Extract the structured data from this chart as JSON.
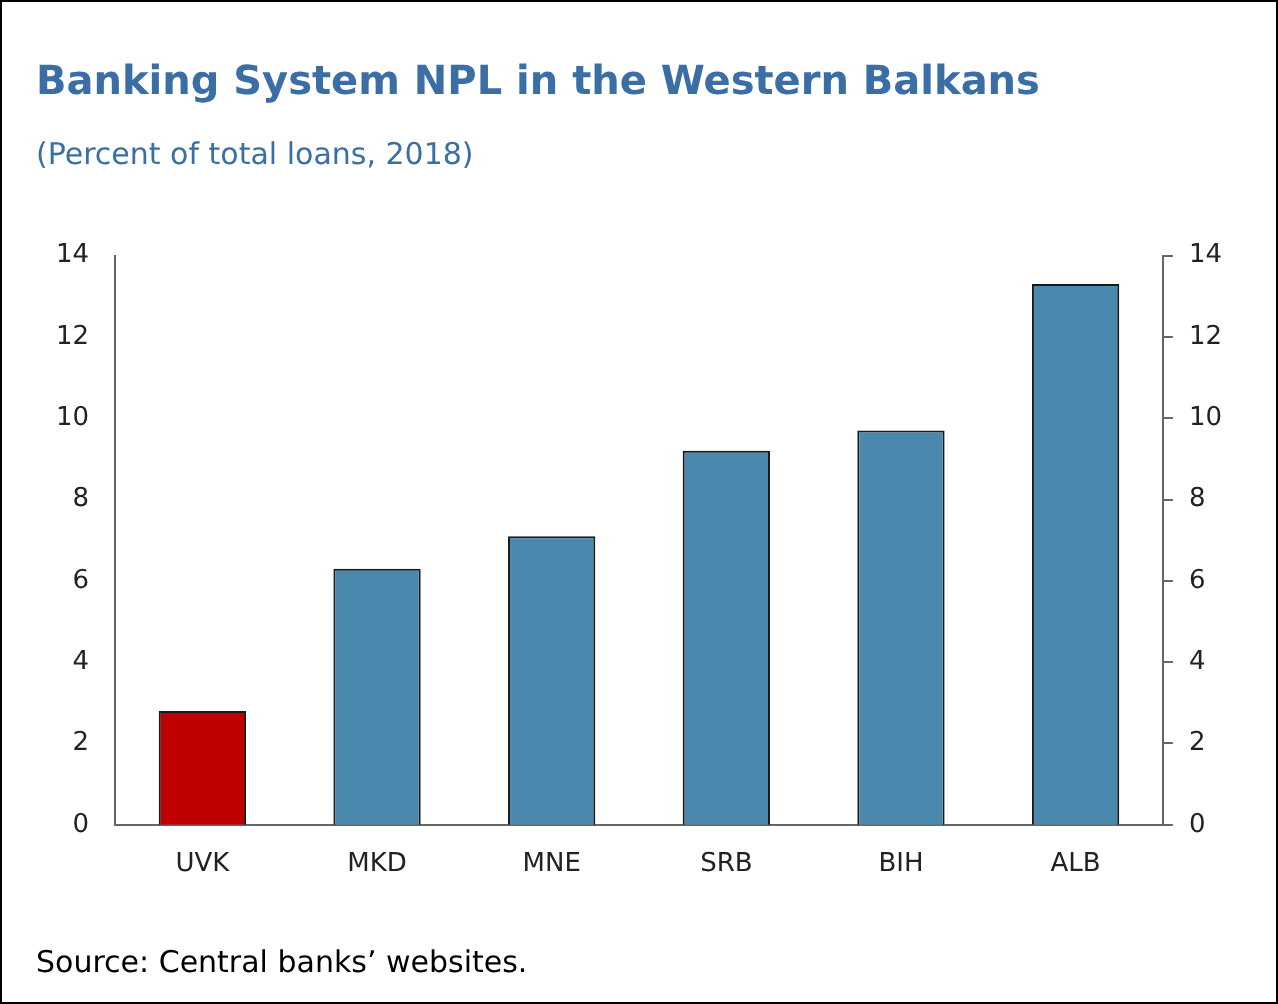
{
  "chart_data": {
    "type": "bar",
    "title": "Banking System NPL in the Western Balkans",
    "subtitle": "(Percent of total loans, 2018)",
    "categories": [
      "UVK",
      "MKD",
      "MNE",
      "SRB",
      "BIH",
      "ALB"
    ],
    "values": [
      2.8,
      6.3,
      7.1,
      9.2,
      9.7,
      13.3
    ],
    "colors": [
      "#c00000",
      "#4a89ad",
      "#4a89ad",
      "#4a89ad",
      "#4a89ad",
      "#4a89ad"
    ],
    "ylim": [
      0,
      14
    ],
    "yticks": [
      0,
      2,
      4,
      6,
      8,
      10,
      12,
      14
    ],
    "y2lim": [
      0,
      14
    ],
    "y2ticks": [
      0,
      2,
      4,
      6,
      8,
      10,
      12,
      14
    ],
    "grid": false,
    "legend": false,
    "annotations": [
      "Source: Central banks’ websites."
    ]
  }
}
